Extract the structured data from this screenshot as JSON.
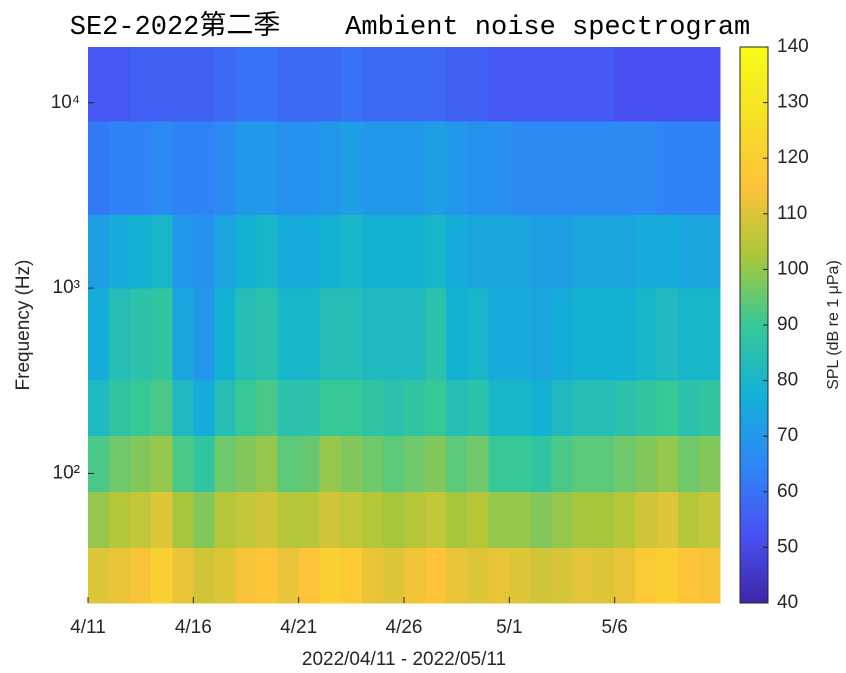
{
  "chart_data": {
    "type": "heatmap",
    "title": "SE2-2022第二季    Ambient noise spectrogram",
    "x_label": "2022/04/11 - 2022/05/11",
    "y_label": "Frequency (Hz)",
    "colorbar_label": "SPL (dB re 1 μPa)",
    "colormap": "parula",
    "y_scale": "log",
    "x": [
      "2022-04-11",
      "2022-04-12",
      "2022-04-13",
      "2022-04-14",
      "2022-04-15",
      "2022-04-16",
      "2022-04-17",
      "2022-04-18",
      "2022-04-19",
      "2022-04-20",
      "2022-04-21",
      "2022-04-22",
      "2022-04-23",
      "2022-04-24",
      "2022-04-25",
      "2022-04-26",
      "2022-04-27",
      "2022-04-28",
      "2022-04-29",
      "2022-04-30",
      "2022-05-01",
      "2022-05-02",
      "2022-05-03",
      "2022-05-04",
      "2022-05-05",
      "2022-05-06",
      "2022-05-07",
      "2022-05-08",
      "2022-05-09",
      "2022-05-10"
    ],
    "xlim": [
      "2022-04-11",
      "2022-05-11"
    ],
    "xticks": [
      {
        "value": "2022-04-11",
        "label": "4/11"
      },
      {
        "value": "2022-04-16",
        "label": "4/16"
      },
      {
        "value": "2022-04-21",
        "label": "4/21"
      },
      {
        "value": "2022-04-26",
        "label": "4/26"
      },
      {
        "value": "2022-05-01",
        "label": "5/1"
      },
      {
        "value": "2022-05-06",
        "label": "5/6"
      }
    ],
    "y_bins": [
      20,
      40,
      80,
      160,
      320,
      1000,
      2500,
      8000,
      20000
    ],
    "ylim": [
      20,
      20000
    ],
    "yticks": [
      {
        "value": 100,
        "label": "10²"
      },
      {
        "value": 1000,
        "label": "10³"
      },
      {
        "value": 10000,
        "label": "10⁴"
      }
    ],
    "clim": [
      40,
      140
    ],
    "cticks": [
      40,
      50,
      60,
      70,
      80,
      90,
      100,
      110,
      120,
      130,
      140
    ],
    "values": [
      [
        110,
        112,
        114,
        120,
        112,
        108,
        110,
        114,
        116,
        112,
        115,
        120,
        118,
        112,
        110,
        113,
        115,
        112,
        110,
        112,
        110,
        108,
        109,
        111,
        110,
        112,
        118,
        120,
        115,
        114
      ],
      [
        100,
        104,
        106,
        110,
        102,
        98,
        104,
        106,
        108,
        104,
        104,
        108,
        106,
        104,
        102,
        104,
        106,
        102,
        104,
        100,
        100,
        98,
        100,
        102,
        102,
        104,
        108,
        110,
        104,
        106
      ],
      [
        92,
        96,
        98,
        100,
        92,
        88,
        96,
        98,
        100,
        94,
        95,
        100,
        98,
        96,
        94,
        96,
        98,
        94,
        96,
        90,
        90,
        88,
        92,
        94,
        94,
        96,
        98,
        100,
        96,
        98
      ],
      [
        82,
        88,
        90,
        92,
        82,
        76,
        84,
        90,
        92,
        86,
        86,
        90,
        90,
        88,
        86,
        88,
        90,
        84,
        86,
        80,
        80,
        78,
        82,
        84,
        84,
        86,
        88,
        90,
        86,
        88
      ],
      [
        76,
        84,
        86,
        88,
        74,
        70,
        78,
        84,
        86,
        80,
        80,
        84,
        84,
        82,
        82,
        82,
        86,
        78,
        80,
        76,
        76,
        74,
        76,
        78,
        78,
        78,
        80,
        82,
        80,
        80
      ],
      [
        72,
        76,
        78,
        80,
        70,
        68,
        74,
        78,
        80,
        76,
        76,
        78,
        80,
        78,
        78,
        78,
        80,
        76,
        74,
        74,
        74,
        72,
        72,
        74,
        74,
        74,
        76,
        76,
        74,
        74
      ],
      [
        62,
        64,
        64,
        66,
        64,
        64,
        66,
        70,
        70,
        68,
        68,
        70,
        72,
        70,
        70,
        70,
        72,
        70,
        68,
        68,
        66,
        66,
        66,
        66,
        66,
        66,
        66,
        64,
        64,
        64
      ],
      [
        54,
        54,
        56,
        56,
        56,
        56,
        58,
        60,
        60,
        58,
        58,
        58,
        60,
        58,
        58,
        58,
        58,
        56,
        56,
        54,
        54,
        54,
        54,
        54,
        54,
        52,
        52,
        52,
        52,
        52
      ]
    ]
  }
}
